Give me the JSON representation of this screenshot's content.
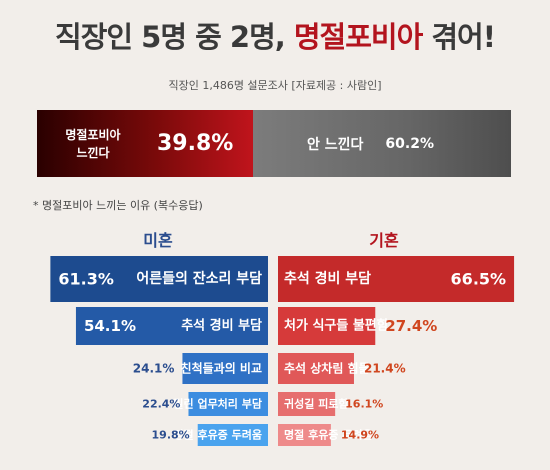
{
  "header": {
    "title_prefix": "직장인 5명 중 2명, ",
    "title_highlight": "명절포비아",
    "title_suffix": " 겪어!",
    "subtitle": "직장인 1,486명 설문조사 [자료제공 : 사람인]"
  },
  "top_split": {
    "left_label_line1": "명절포비아",
    "left_label_line2": "느낀다",
    "left_value": "39.8%",
    "right_label": "안 느낀다",
    "right_value": "60.2%"
  },
  "note": "* 명절포비아 느끼는 이유 (복수응답)",
  "colors": {
    "title": "#3a3a3a",
    "highlight": "#b3141e",
    "unmarried": [
      "#1d4b8f",
      "#245aa7",
      "#2f71c5",
      "#3c8de0",
      "#4aa3ee"
    ],
    "married": [
      "#c42a2a",
      "#d63a3a",
      "#e05858",
      "#e66e6e",
      "#ee8a8a"
    ],
    "unmarried_text": "#2b4d8e",
    "married_text": "#d0461f"
  },
  "chart_data": {
    "type": "bar",
    "title": "",
    "series": [
      {
        "name": "미혼",
        "categories": [
          "어른들의 잔소리 부담",
          "추석 경비 부담",
          "친척들과의 비교",
          "밀린 업무처리 부담",
          "명절 후유증 두려움"
        ],
        "values": [
          61.3,
          54.1,
          24.1,
          22.4,
          19.8
        ],
        "labels": [
          "61.3%",
          "54.1%",
          "24.1%",
          "22.4%",
          "19.8%"
        ]
      },
      {
        "name": "기혼",
        "categories": [
          "추석 경비 부담",
          "처가 식구들 불편함",
          "추석 상차림 힘듦",
          "귀성길 피로함",
          "명절 후유증 두려움"
        ],
        "values": [
          66.5,
          27.4,
          21.4,
          16.1,
          14.9
        ],
        "labels": [
          "66.5%",
          "27.4%",
          "21.4%",
          "16.1%",
          "14.9%"
        ]
      }
    ]
  }
}
